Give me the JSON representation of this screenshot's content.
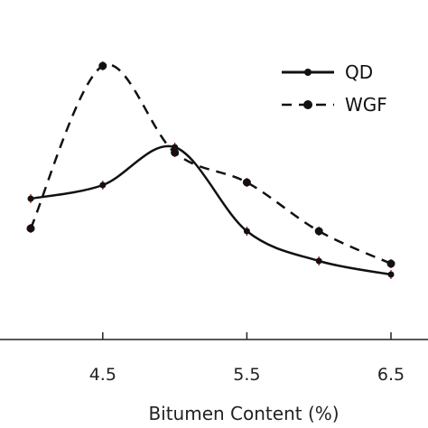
{
  "chart_data": {
    "type": "line",
    "xlabel": "Bitumen Content (%)",
    "ylabel": "",
    "title": "",
    "xlim": [
      4.0,
      6.5
    ],
    "x_ticks": [
      4.5,
      5.5,
      6.5
    ],
    "x_tick_labels": [
      "4.5",
      "5.5",
      "6.5"
    ],
    "ylim": [
      0,
      1
    ],
    "grid": false,
    "legend_position": "top-right",
    "series": [
      {
        "name": "QD",
        "style": "solid",
        "color": "#111111",
        "marker_color": "#111111",
        "x": [
          4.0,
          4.5,
          5.0,
          5.5,
          6.0,
          6.5
        ],
        "y": [
          0.51,
          0.56,
          0.7,
          0.39,
          0.28,
          0.23
        ]
      },
      {
        "name": "WGF",
        "style": "dashed",
        "color": "#111111",
        "marker_color": "#111111",
        "x": [
          4.0,
          4.5,
          5.0,
          5.5,
          6.0,
          6.5
        ],
        "y": [
          0.4,
          1.0,
          0.68,
          0.57,
          0.39,
          0.27
        ]
      }
    ],
    "error_bar_color": "#c00000"
  }
}
